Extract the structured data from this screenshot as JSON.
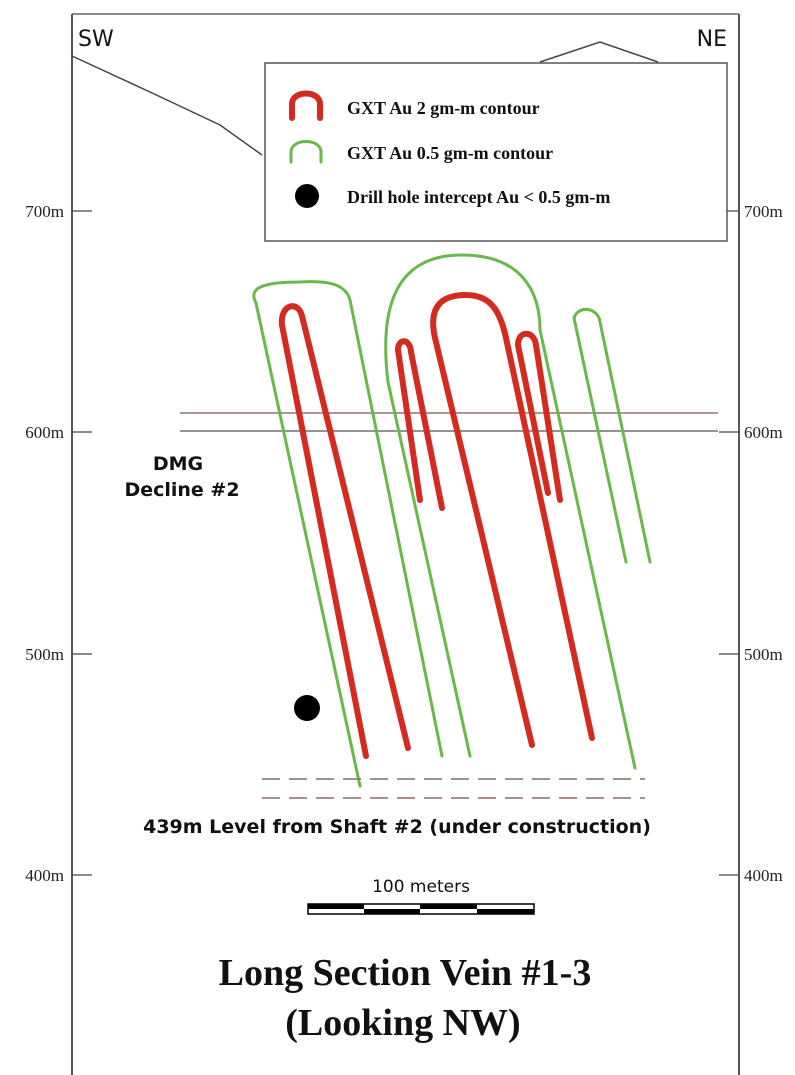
{
  "orientation": {
    "left": "SW",
    "right": "NE"
  },
  "elevation_ticks": [
    "700m",
    "600m",
    "500m",
    "400m"
  ],
  "legend": {
    "items": [
      {
        "label": "GXT Au 2 gm-m contour",
        "color": "#d42a1f",
        "symbol": "red-arch-icon"
      },
      {
        "label": "GXT Au 0.5 gm-m contour",
        "color": "#69b84a",
        "symbol": "green-arch-icon"
      },
      {
        "label": "Drill hole intercept Au < 0.5 gm-m",
        "color": "#000000",
        "symbol": "black-dot-icon"
      }
    ]
  },
  "annotations": {
    "decline_line1": "DMG",
    "decline_line2": "Decline #2",
    "level": "439m Level from Shaft #2 (under construction)"
  },
  "scale_bar": {
    "label": "100 meters"
  },
  "title": {
    "line1": "Long Section Vein #1-3",
    "line2": "(Looking NW)"
  }
}
